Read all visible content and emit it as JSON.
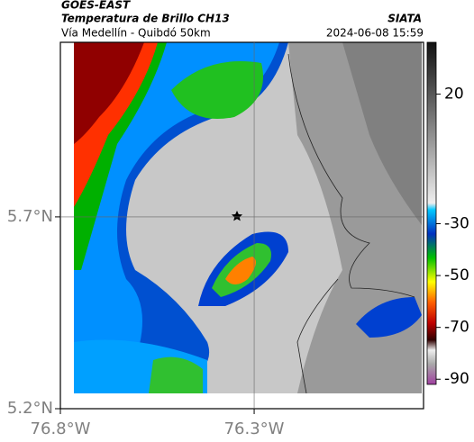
{
  "header": {
    "satellite": "GOES-EAST",
    "product": "Temperatura de Brillo CH13",
    "source": "SIATA",
    "route": "Vía Medellín - Quibdó 50km",
    "timestamp": "2024-06-08 15:59"
  },
  "map": {
    "xlim": [
      -76.8,
      -75.863
    ],
    "ylim": [
      5.2,
      6.155
    ],
    "xticks": [
      {
        "value": -76.8,
        "label": "76.8°W"
      },
      {
        "value": -76.3,
        "label": "76.3°W"
      }
    ],
    "yticks": [
      {
        "value": 5.2,
        "label": "5.2°N"
      },
      {
        "value": 5.7,
        "label": "5.7°N"
      }
    ]
  },
  "colorbar": {
    "lim": [
      -92,
      40
    ],
    "ticks": [
      20,
      -30,
      -50,
      -70,
      -90
    ]
  }
}
